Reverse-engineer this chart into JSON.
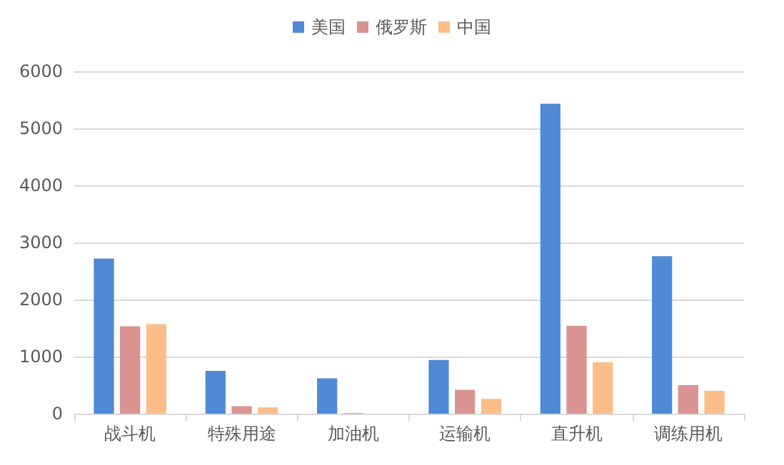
{
  "chart_data": {
    "type": "bar",
    "categories": [
      "战斗机",
      "特殊用途",
      "加油机",
      "运输机",
      "直升机",
      "调练用机"
    ],
    "series": [
      {
        "name": "美国",
        "color": "#5089d6",
        "values": [
          2720,
          750,
          620,
          940,
          5430,
          2760
        ]
      },
      {
        "name": "俄罗斯",
        "color": "#d99391",
        "values": [
          1530,
          130,
          10,
          420,
          1540,
          500
        ]
      },
      {
        "name": "中国",
        "color": "#fbbe89",
        "values": [
          1570,
          110,
          0,
          260,
          900,
          400
        ]
      }
    ],
    "ylim": [
      0,
      6000
    ],
    "yticks": [
      0,
      1000,
      2000,
      3000,
      4000,
      5000,
      6000
    ],
    "grid": "y",
    "legend": "top"
  }
}
